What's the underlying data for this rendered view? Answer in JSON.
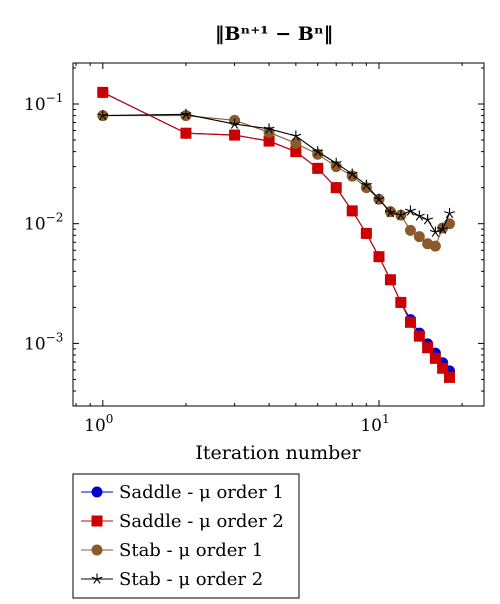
{
  "chart_data": {
    "type": "line",
    "title": "‖Bⁿ⁺¹ − Bⁿ‖",
    "xlabel": "Iteration number",
    "ylabel": "",
    "x_scale": "log",
    "y_scale": "log",
    "xlim": [
      0.78,
      24
    ],
    "ylim": [
      0.0003,
      0.22
    ],
    "x_ticks": [
      {
        "value": 1,
        "base": "10",
        "exp": "0"
      },
      {
        "value": 10,
        "base": "10",
        "exp": "1"
      }
    ],
    "y_ticks": [
      {
        "value": 0.1,
        "base": "10",
        "exp": "−1"
      },
      {
        "value": 0.01,
        "base": "10",
        "exp": "−2"
      },
      {
        "value": 0.001,
        "base": "10",
        "exp": "−3"
      }
    ],
    "legend_position": "below",
    "series": [
      {
        "name": "Saddle - μ order 1",
        "color": "#0000cc",
        "marker": "circle",
        "x": [
          1,
          2,
          3,
          4,
          5,
          6,
          7,
          8,
          9,
          10,
          11,
          12,
          13,
          14,
          15,
          16,
          17,
          18
        ],
        "y": [
          0.125,
          0.057,
          0.055,
          0.049,
          0.04,
          0.029,
          0.02,
          0.0128,
          0.0083,
          0.0053,
          0.0034,
          0.0022,
          0.00158,
          0.00122,
          0.00099,
          0.00083,
          0.00069,
          0.00059
        ]
      },
      {
        "name": "Saddle - μ order 2",
        "color": "#cc0000",
        "marker": "square",
        "x": [
          1,
          2,
          3,
          4,
          5,
          6,
          7,
          8,
          9,
          10,
          11,
          12,
          13,
          14,
          15,
          16,
          17,
          18
        ],
        "y": [
          0.125,
          0.057,
          0.055,
          0.049,
          0.04,
          0.029,
          0.02,
          0.0128,
          0.0083,
          0.0053,
          0.0034,
          0.0022,
          0.0015,
          0.00115,
          0.00092,
          0.00075,
          0.00062,
          0.00052
        ]
      },
      {
        "name": "Stab - μ order 1",
        "color": "#8b5a2b",
        "marker": "circle",
        "x": [
          1,
          2,
          3,
          4,
          5,
          6,
          7,
          8,
          9,
          10,
          11,
          12,
          13,
          14,
          15,
          16,
          17,
          18
        ],
        "y": [
          0.08,
          0.08,
          0.073,
          0.058,
          0.047,
          0.038,
          0.03,
          0.025,
          0.02,
          0.016,
          0.0126,
          0.0118,
          0.0088,
          0.0078,
          0.0068,
          0.0065,
          0.0092,
          0.01
        ]
      },
      {
        "name": "Stab - μ order 2",
        "color": "#000000",
        "marker": "star",
        "x": [
          1,
          2,
          3,
          4,
          5,
          6,
          7,
          8,
          9,
          10,
          11,
          12,
          13,
          14,
          15,
          16,
          17,
          18
        ],
        "y": [
          0.08,
          0.082,
          0.068,
          0.062,
          0.054,
          0.04,
          0.032,
          0.026,
          0.021,
          0.016,
          0.0124,
          0.0118,
          0.0128,
          0.0116,
          0.0108,
          0.0085,
          0.009,
          0.0122
        ]
      }
    ]
  }
}
